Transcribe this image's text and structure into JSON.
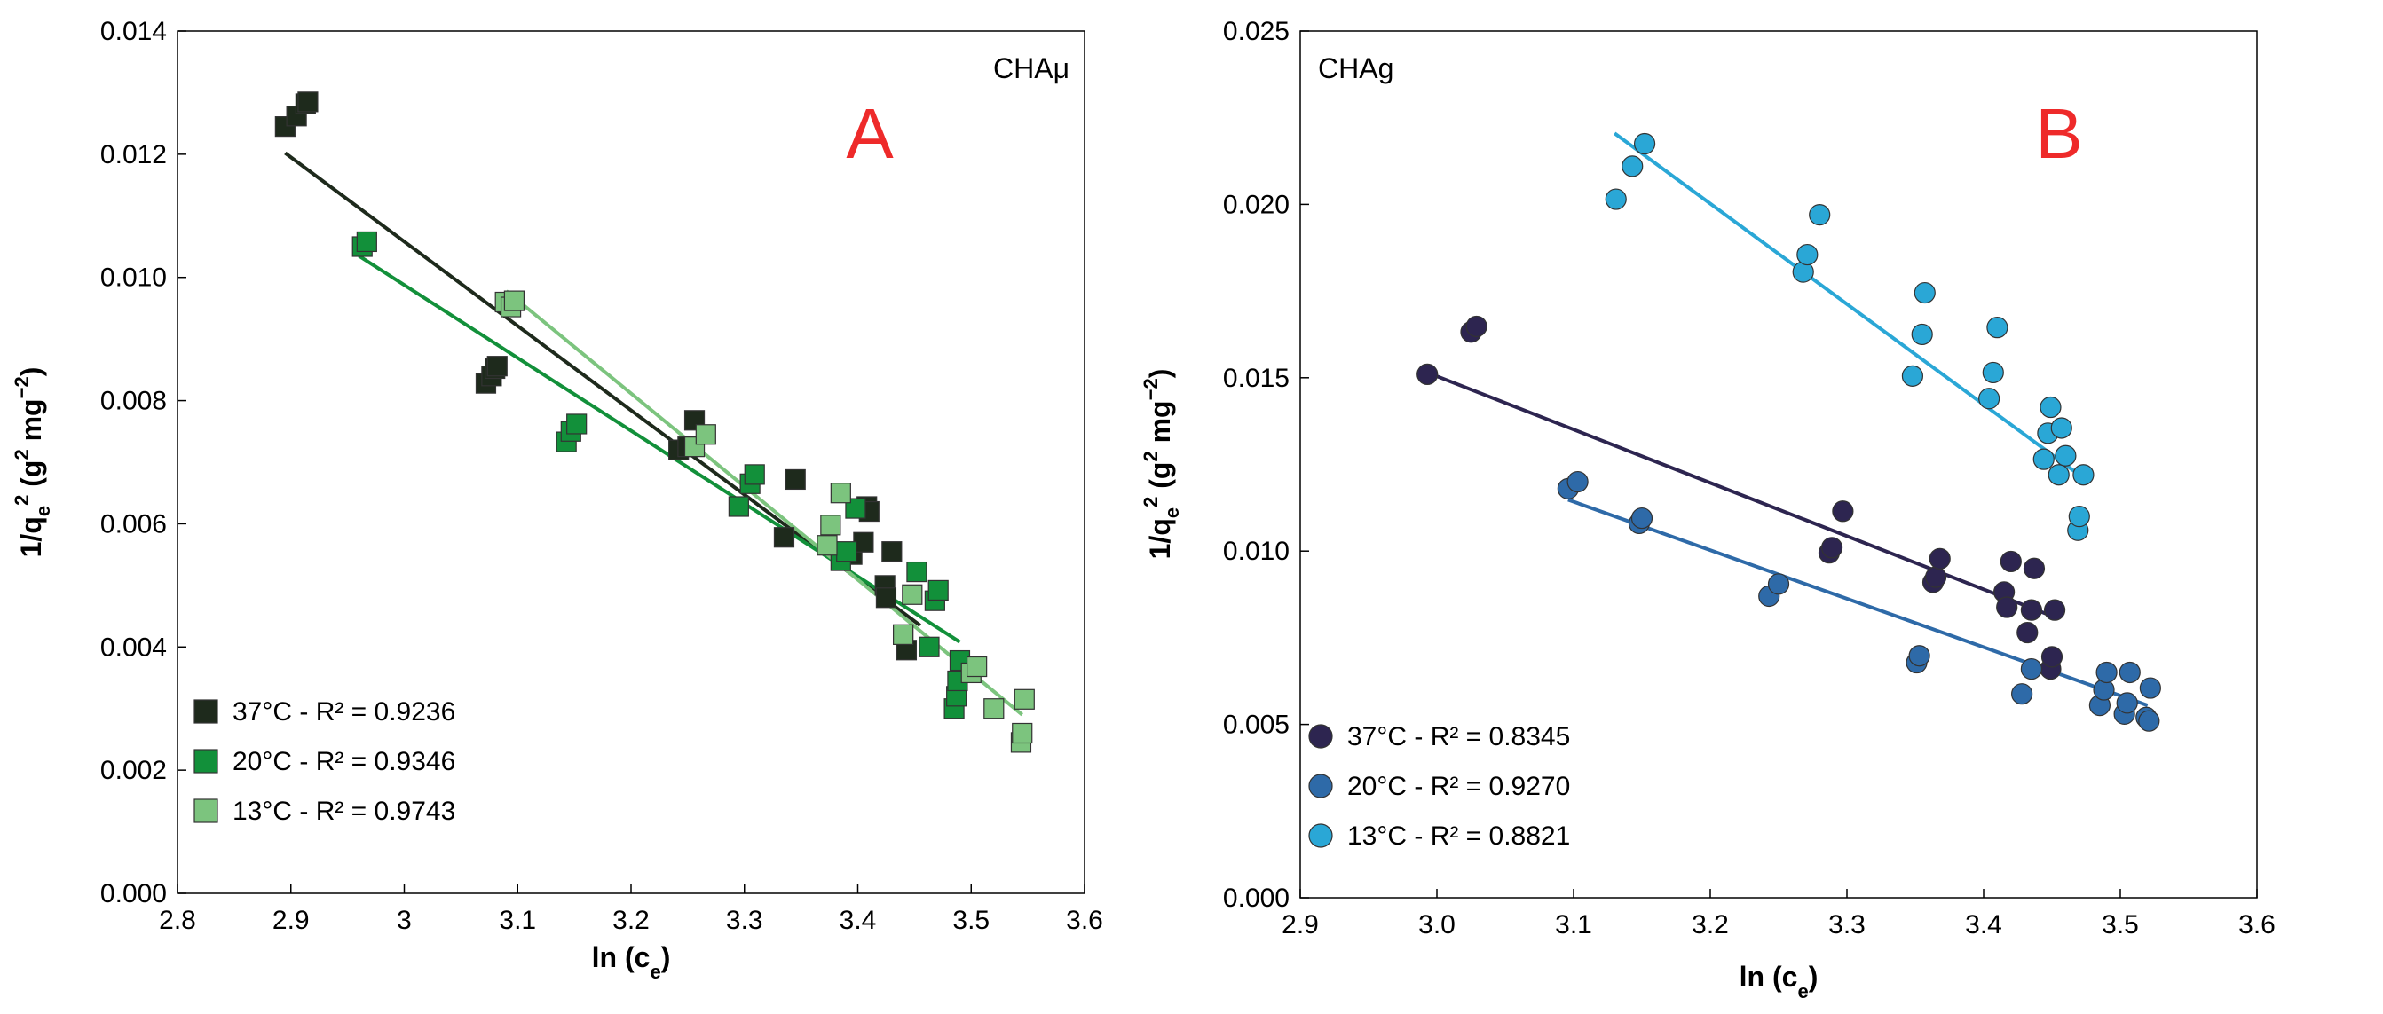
{
  "chart_data": [
    {
      "type": "scatter",
      "panel_letter": "A",
      "panel_name": "CHAμ",
      "xlabel": "ln (c",
      "xlabel_sub": "e",
      "xlabel_end": ")",
      "ylabel_parts": [
        "1/q",
        "e",
        "2",
        " (g",
        "2",
        " mg",
        "−2",
        ")"
      ],
      "xlim": [
        2.8,
        3.6
      ],
      "ylim": [
        0,
        0.014
      ],
      "xticks": [
        2.8,
        2.9,
        3,
        3.1,
        3.2,
        3.3,
        3.4,
        3.5,
        3.6
      ],
      "xtick_labels": [
        "2.8",
        "2.9",
        "3",
        "3.1",
        "3.2",
        "3.3",
        "3.4",
        "3.5",
        "3.6"
      ],
      "yticks": [
        0,
        0.002,
        0.004,
        0.006,
        0.008,
        0.01,
        0.012,
        0.014
      ],
      "ytick_labels": [
        "0.000",
        "0.002",
        "0.004",
        "0.006",
        "0.008",
        "0.010",
        "0.012",
        "0.014"
      ],
      "marker": "square",
      "legend_position": "bottom-left",
      "series": [
        {
          "name": "37°C - R² = 0.9236",
          "color": "#1e2a1c",
          "fit": [
            [
              2.895,
              0.01202
            ],
            [
              3.455,
              0.00435
            ]
          ],
          "points": [
            [
              2.895,
              0.01245
            ],
            [
              2.905,
              0.01262
            ],
            [
              2.913,
              0.01282
            ],
            [
              2.915,
              0.01285
            ],
            [
              3.072,
              0.00828
            ],
            [
              3.077,
              0.0084
            ],
            [
              3.08,
              0.00852
            ],
            [
              3.082,
              0.00856
            ],
            [
              3.242,
              0.0072
            ],
            [
              3.25,
              0.00725
            ],
            [
              3.256,
              0.00768
            ],
            [
              3.335,
              0.00578
            ],
            [
              3.345,
              0.00672
            ],
            [
              3.395,
              0.0055
            ],
            [
              3.405,
              0.0057
            ],
            [
              3.408,
              0.00628
            ],
            [
              3.41,
              0.0062
            ],
            [
              3.424,
              0.005
            ],
            [
              3.425,
              0.0048
            ],
            [
              3.43,
              0.00555
            ],
            [
              3.44,
              0.0042
            ],
            [
              3.443,
              0.00395
            ]
          ]
        },
        {
          "name": "20°C - R² = 0.9346",
          "color": "#12903a",
          "fit": [
            [
              2.96,
              0.01035
            ],
            [
              3.49,
              0.00408
            ]
          ],
          "points": [
            [
              2.963,
              0.0105
            ],
            [
              2.967,
              0.01058
            ],
            [
              3.143,
              0.00733
            ],
            [
              3.147,
              0.0075
            ],
            [
              3.152,
              0.00762
            ],
            [
              3.295,
              0.00628
            ],
            [
              3.305,
              0.00665
            ],
            [
              3.309,
              0.0068
            ],
            [
              3.385,
              0.0054
            ],
            [
              3.39,
              0.00555
            ],
            [
              3.398,
              0.00625
            ],
            [
              3.452,
              0.00522
            ],
            [
              3.463,
              0.004
            ],
            [
              3.468,
              0.00475
            ],
            [
              3.471,
              0.00492
            ],
            [
              3.485,
              0.003
            ],
            [
              3.487,
              0.0032
            ],
            [
              3.488,
              0.00345
            ],
            [
              3.49,
              0.00378
            ]
          ]
        },
        {
          "name": "13°C - R² = 0.9743",
          "color": "#7cc47e",
          "fit": [
            [
              3.09,
              0.00978
            ],
            [
              3.545,
              0.0029
            ]
          ],
          "points": [
            [
              3.089,
              0.0096
            ],
            [
              3.094,
              0.00952
            ],
            [
              3.097,
              0.00962
            ],
            [
              3.256,
              0.00725
            ],
            [
              3.266,
              0.00745
            ],
            [
              3.373,
              0.00565
            ],
            [
              3.376,
              0.00598
            ],
            [
              3.385,
              0.0065
            ],
            [
              3.44,
              0.0042
            ],
            [
              3.448,
              0.00485
            ],
            [
              3.5,
              0.00358
            ],
            [
              3.505,
              0.00368
            ],
            [
              3.52,
              0.003
            ],
            [
              3.544,
              0.00245
            ],
            [
              3.545,
              0.0026
            ],
            [
              3.547,
              0.00315
            ]
          ]
        }
      ]
    },
    {
      "type": "scatter",
      "panel_letter": "B",
      "panel_name": "CHAg",
      "xlabel": "ln (c",
      "xlabel_sub": "e",
      "xlabel_end": ")",
      "ylabel_parts": [
        "1/q",
        "e",
        "2",
        " (g",
        "2",
        " mg",
        "−2",
        ")"
      ],
      "xlim": [
        2.9,
        3.6
      ],
      "ylim": [
        0,
        0.025
      ],
      "xticks": [
        2.9,
        3.0,
        3.1,
        3.2,
        3.3,
        3.4,
        3.5,
        3.6
      ],
      "xtick_labels": [
        "2.9",
        "3.0",
        "3.1",
        "3.2",
        "3.3",
        "3.4",
        "3.5",
        "3.6"
      ],
      "yticks": [
        0,
        0.005,
        0.01,
        0.015,
        0.02,
        0.025
      ],
      "ytick_labels": [
        "0.000",
        "0.005",
        "0.010",
        "0.015",
        "0.020",
        "0.025"
      ],
      "marker": "circle",
      "legend_position": "bottom-left",
      "series": [
        {
          "name": "37°C - R² = 0.8345",
          "color": "#2d2550",
          "fit": [
            [
              2.993,
              0.01515
            ],
            [
              3.455,
              0.00805
            ]
          ],
          "points": [
            [
              2.993,
              0.0151
            ],
            [
              3.025,
              0.01632
            ],
            [
              3.029,
              0.01648
            ],
            [
              3.287,
              0.00995
            ],
            [
              3.289,
              0.0101
            ],
            [
              3.297,
              0.01115
            ],
            [
              3.363,
              0.0091
            ],
            [
              3.365,
              0.00925
            ],
            [
              3.368,
              0.00978
            ],
            [
              3.415,
              0.00882
            ],
            [
              3.417,
              0.00838
            ],
            [
              3.42,
              0.0097
            ],
            [
              3.432,
              0.00765
            ],
            [
              3.435,
              0.0083
            ],
            [
              3.437,
              0.0095
            ],
            [
              3.449,
              0.0066
            ],
            [
              3.45,
              0.00695
            ],
            [
              3.452,
              0.0083
            ]
          ]
        },
        {
          "name": "20°C - R² = 0.9270",
          "color": "#2e6aa8",
          "fit": [
            [
              3.096,
              0.01148
            ],
            [
              3.52,
              0.00555
            ]
          ],
          "points": [
            [
              3.096,
              0.0118
            ],
            [
              3.103,
              0.012
            ],
            [
              3.148,
              0.0108
            ],
            [
              3.15,
              0.01095
            ],
            [
              3.243,
              0.0087
            ],
            [
              3.25,
              0.00905
            ],
            [
              3.351,
              0.00678
            ],
            [
              3.353,
              0.00698
            ],
            [
              3.428,
              0.00588
            ],
            [
              3.435,
              0.0066
            ],
            [
              3.485,
              0.00555
            ],
            [
              3.488,
              0.006
            ],
            [
              3.49,
              0.0065
            ],
            [
              3.503,
              0.0053
            ],
            [
              3.505,
              0.00562
            ],
            [
              3.507,
              0.0065
            ],
            [
              3.519,
              0.0052
            ],
            [
              3.521,
              0.0051
            ],
            [
              3.522,
              0.00605
            ]
          ]
        },
        {
          "name": "13°C - R² = 0.8821",
          "color": "#2aa7d6",
          "fit": [
            [
              3.13,
              0.02205
            ],
            [
              3.47,
              0.0122
            ]
          ],
          "points": [
            [
              3.131,
              0.02015
            ],
            [
              3.143,
              0.0211
            ],
            [
              3.152,
              0.02175
            ],
            [
              3.268,
              0.01805
            ],
            [
              3.271,
              0.01855
            ],
            [
              3.28,
              0.0197
            ],
            [
              3.348,
              0.01505
            ],
            [
              3.355,
              0.01625
            ],
            [
              3.357,
              0.01745
            ],
            [
              3.404,
              0.0144
            ],
            [
              3.407,
              0.01515
            ],
            [
              3.41,
              0.01645
            ],
            [
              3.444,
              0.01265
            ],
            [
              3.447,
              0.0134
            ],
            [
              3.449,
              0.01415
            ],
            [
              3.455,
              0.0122
            ],
            [
              3.457,
              0.01355
            ],
            [
              3.46,
              0.01275
            ],
            [
              3.469,
              0.0106
            ],
            [
              3.47,
              0.011
            ],
            [
              3.473,
              0.0122
            ]
          ]
        }
      ]
    }
  ]
}
